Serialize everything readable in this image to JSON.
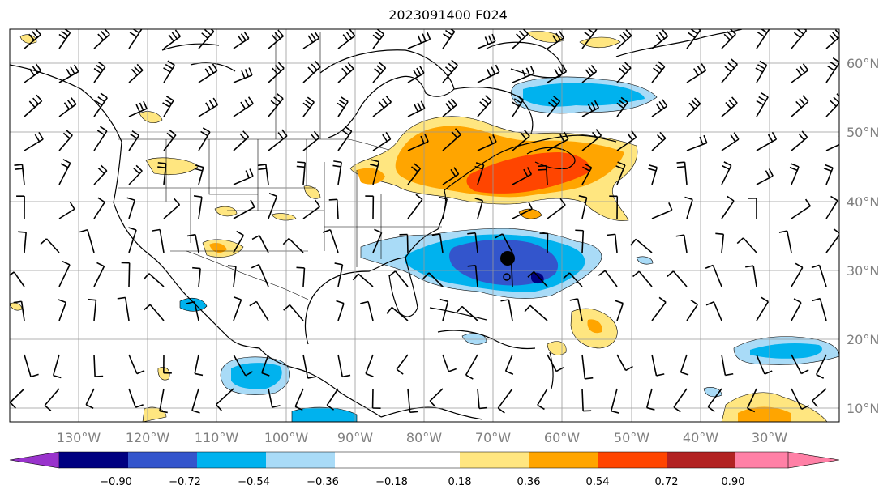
{
  "title": "2023091400 F024",
  "map": {
    "projection": "plate-carree",
    "lon_range": [
      -145,
      -25
    ],
    "lat_range": [
      7,
      64
    ],
    "lon_labels": [
      "130°W",
      "120°W",
      "110°W",
      "100°W",
      "90°W",
      "80°W",
      "70°W",
      "60°W",
      "50°W",
      "40°W",
      "30°W"
    ],
    "lat_labels": [
      "10°N",
      "20°N",
      "30°N",
      "40°N",
      "50°N",
      "60°N"
    ],
    "gridlines": true,
    "storm_marker": {
      "lon": -68.4,
      "lat": 32.0
    },
    "storm_track_marker": {
      "lon": -68.6,
      "lat": 29.5
    }
  },
  "colorbar": {
    "orientation": "horizontal",
    "extend": "both",
    "ticks": [
      "−0.90",
      "−0.72",
      "−0.54",
      "−0.36",
      "−0.18",
      "0.18",
      "0.36",
      "0.54",
      "0.72",
      "0.90"
    ],
    "colors": [
      "#9933cc",
      "#000080",
      "#3355cc",
      "#00b2ee",
      "#a9dbf7",
      "#ffffff",
      "#ffe680",
      "#ffa500",
      "#ff4500",
      "#b22222",
      "#ff80a6"
    ]
  },
  "icons": {
    "wind-barbs": "wind-barb-icon",
    "storm-center": "filled-circle-icon"
  }
}
